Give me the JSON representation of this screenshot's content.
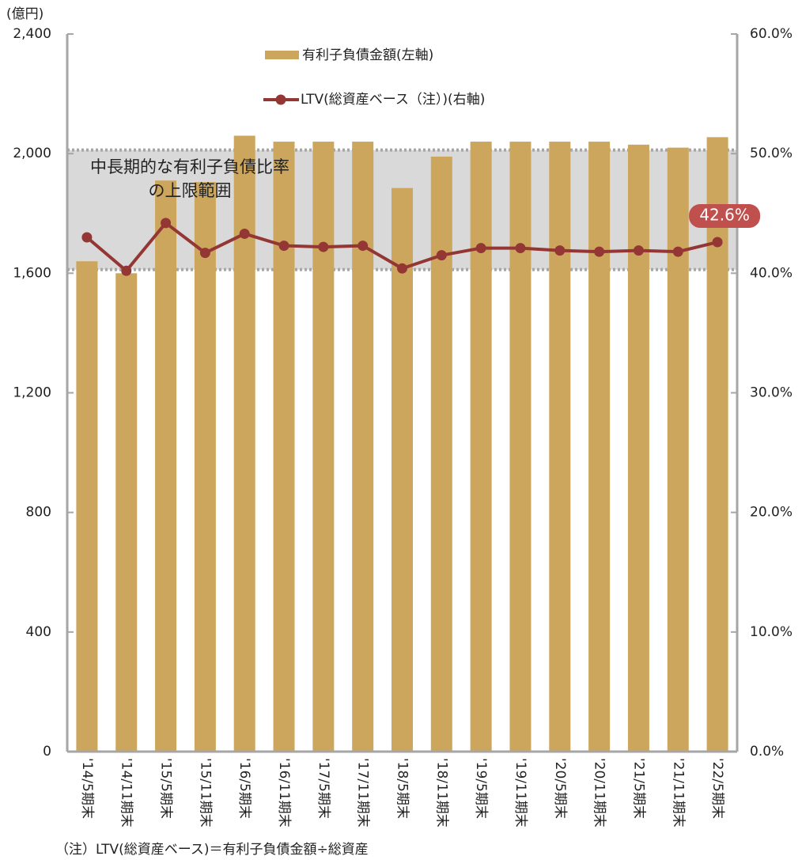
{
  "chart_data": {
    "type": "bar_line",
    "y_unit": "(億円)",
    "note": "（注）LTV(総資産ベース)＝有利子負債金額÷総資産",
    "categories": [
      "'14/5期末",
      "'14/11期末",
      "'15/5期末",
      "'15/11期末",
      "'16/5期末",
      "'16/11期末",
      "'17/5期末",
      "'17/11期末",
      "'18/5期末",
      "'18/11期末",
      "'19/5期末",
      "'19/11期末",
      "'20/5期末",
      "'20/11期末",
      "'21/5期末",
      "'21/11期末",
      "'22/5期末"
    ],
    "series": [
      {
        "name": "有利子負債金額(左軸)",
        "type": "bar",
        "color": "#cda65e",
        "values": [
          1640,
          1600,
          1910,
          1905,
          2060,
          2040,
          2040,
          2040,
          1885,
          1990,
          2040,
          2040,
          2040,
          2040,
          2030,
          2020,
          2055
        ]
      },
      {
        "name": "LTV(総資産ベース（注）)(右軸)",
        "type": "line",
        "axis": "y2",
        "color": "#943634",
        "values": [
          43.0,
          40.2,
          44.2,
          41.7,
          43.3,
          42.3,
          42.2,
          42.3,
          40.4,
          41.5,
          42.1,
          42.1,
          41.9,
          41.8,
          41.9,
          41.8,
          42.6
        ],
        "value_labels": [
          null,
          null,
          null,
          null,
          null,
          null,
          null,
          null,
          null,
          null,
          null,
          null,
          null,
          null,
          null,
          null,
          "42.6%"
        ]
      }
    ],
    "band": {
      "y2range": [
        40.3,
        50.3
      ],
      "color": "#d9d9d9",
      "label": [
        "中長期的な有利子負債比率",
        "の上限範囲"
      ]
    },
    "ylim": [
      0,
      2400
    ],
    "yticks": [
      0,
      {
        "value": 400,
        "label": "400"
      },
      {
        "value": 800,
        "label": "800"
      },
      {
        "value": 1200,
        "label": "1,200"
      },
      {
        "value": 1600,
        "label": "1,600"
      },
      {
        "value": 2000,
        "label": "2,000"
      },
      {
        "value": 2400,
        "label": "2,400"
      }
    ],
    "y2lim": [
      0,
      60
    ],
    "y2ticks": [
      {
        "value": 0,
        "label": "0.0%"
      },
      {
        "value": 10,
        "label": "10.0%"
      },
      {
        "value": 20,
        "label": "20.0%"
      },
      {
        "value": 30,
        "label": "30.0%"
      },
      {
        "value": 40,
        "label": "40.0%"
      },
      {
        "value": 50,
        "label": "50.0%"
      },
      {
        "value": 60,
        "label": "60.0%"
      }
    ],
    "grid": true
  }
}
